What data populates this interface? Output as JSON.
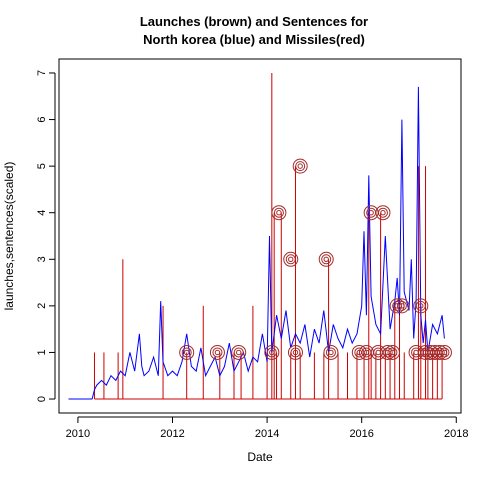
{
  "chart_data": {
    "type": "line",
    "title_line1": "Launches (brown) and Sentences for",
    "title_line2": "North korea (blue) and Missiles(red)",
    "xlabel": "Date",
    "ylabel": "launches,sentences(scaled)",
    "xlim": [
      2009.6,
      2018.1
    ],
    "ylim": [
      -0.3,
      7.3
    ],
    "x_ticks": [
      2010,
      2012,
      2014,
      2016,
      2018
    ],
    "y_ticks": [
      0,
      1,
      2,
      3,
      4,
      5,
      6,
      7
    ],
    "grid": false,
    "colors": {
      "sentences": "#0000ff",
      "missiles": "#cc0000",
      "launches": "#a52a2a",
      "axis": "#000000"
    },
    "series": [
      {
        "id": "sentences",
        "x": [
          2009.8,
          2010.3,
          2010.35,
          2010.4,
          2010.5,
          2010.6,
          2010.7,
          2010.8,
          2010.9,
          2011.0,
          2011.1,
          2011.2,
          2011.3,
          2011.35,
          2011.4,
          2011.5,
          2011.6,
          2011.7,
          2011.75,
          2011.8,
          2011.9,
          2012.0,
          2012.1,
          2012.2,
          2012.3,
          2012.4,
          2012.5,
          2012.6,
          2012.7,
          2012.8,
          2012.9,
          2013.0,
          2013.1,
          2013.2,
          2013.3,
          2013.4,
          2013.5,
          2013.6,
          2013.7,
          2013.8,
          2013.9,
          2014.0,
          2014.05,
          2014.1,
          2014.2,
          2014.3,
          2014.4,
          2014.5,
          2014.6,
          2014.7,
          2014.8,
          2014.9,
          2015.0,
          2015.1,
          2015.2,
          2015.3,
          2015.4,
          2015.5,
          2015.6,
          2015.7,
          2015.8,
          2015.9,
          2016.0,
          2016.05,
          2016.1,
          2016.15,
          2016.2,
          2016.3,
          2016.4,
          2016.5,
          2016.6,
          2016.7,
          2016.75,
          2016.8,
          2016.85,
          2016.9,
          2017.0,
          2017.05,
          2017.1,
          2017.15,
          2017.2,
          2017.25,
          2017.3,
          2017.35,
          2017.4,
          2017.5,
          2017.6,
          2017.7,
          2017.75
        ],
        "values": [
          0.0,
          0.0,
          0.2,
          0.3,
          0.4,
          0.3,
          0.5,
          0.4,
          0.6,
          0.5,
          1.0,
          0.6,
          1.4,
          0.7,
          0.5,
          0.6,
          0.9,
          0.5,
          2.1,
          0.8,
          0.5,
          0.6,
          0.5,
          0.8,
          1.4,
          0.7,
          0.6,
          1.1,
          0.5,
          0.7,
          0.9,
          0.5,
          0.7,
          1.2,
          0.6,
          0.8,
          1.0,
          0.6,
          0.9,
          0.8,
          1.4,
          0.8,
          3.5,
          1.0,
          1.8,
          1.3,
          1.9,
          1.1,
          1.4,
          1.2,
          1.6,
          0.9,
          1.5,
          1.2,
          1.9,
          1.0,
          1.6,
          1.3,
          1.1,
          1.5,
          1.2,
          1.4,
          2.0,
          3.6,
          1.8,
          4.8,
          2.2,
          1.6,
          1.4,
          3.5,
          1.5,
          2.1,
          2.6,
          1.8,
          6.0,
          2.3,
          1.9,
          3.0,
          1.3,
          2.1,
          6.7,
          1.8,
          1.2,
          1.7,
          1.0,
          1.6,
          1.4,
          1.8,
          1.3
        ]
      },
      {
        "id": "missiles",
        "x": [
          2010.35,
          2010.55,
          2010.85,
          2010.95,
          2011.8,
          2012.3,
          2012.65,
          2013.0,
          2013.3,
          2013.45,
          2013.7,
          2014.0,
          2014.1,
          2014.15,
          2014.2,
          2014.3,
          2014.5,
          2014.6,
          2014.7,
          2015.0,
          2015.2,
          2015.3,
          2015.5,
          2015.7,
          2015.9,
          2016.05,
          2016.15,
          2016.2,
          2016.3,
          2016.4,
          2016.5,
          2016.6,
          2016.7,
          2016.8,
          2016.9,
          2017.1,
          2017.2,
          2017.25,
          2017.35,
          2017.4,
          2017.5,
          2017.6,
          2017.7
        ],
        "values": [
          1.0,
          1.0,
          1.0,
          3.0,
          2.0,
          1.0,
          2.0,
          1.0,
          1.0,
          1.0,
          2.0,
          1.0,
          7.0,
          4.0,
          1.0,
          4.0,
          1.0,
          5.0,
          1.0,
          1.0,
          1.0,
          3.0,
          1.0,
          1.0,
          1.0,
          1.0,
          4.0,
          1.0,
          1.0,
          4.0,
          1.0,
          1.0,
          2.0,
          2.0,
          1.0,
          1.0,
          5.0,
          2.0,
          5.0,
          1.0,
          1.0,
          1.0,
          1.0
        ]
      },
      {
        "id": "launches",
        "x": [
          2012.3,
          2012.95,
          2013.4,
          2014.1,
          2014.25,
          2014.5,
          2014.6,
          2014.7,
          2015.25,
          2015.35,
          2015.95,
          2016.1,
          2016.2,
          2016.35,
          2016.45,
          2016.55,
          2016.65,
          2016.75,
          2016.85,
          2017.15,
          2017.25,
          2017.35,
          2017.45,
          2017.55,
          2017.65,
          2017.75
        ],
        "values": [
          1.0,
          1.0,
          1.0,
          1.0,
          4.0,
          3.0,
          1.0,
          5.0,
          3.0,
          1.0,
          1.0,
          1.0,
          4.0,
          1.0,
          4.0,
          1.0,
          1.0,
          2.0,
          2.0,
          1.0,
          2.0,
          1.0,
          1.0,
          1.0,
          1.0,
          1.0
        ]
      }
    ]
  }
}
